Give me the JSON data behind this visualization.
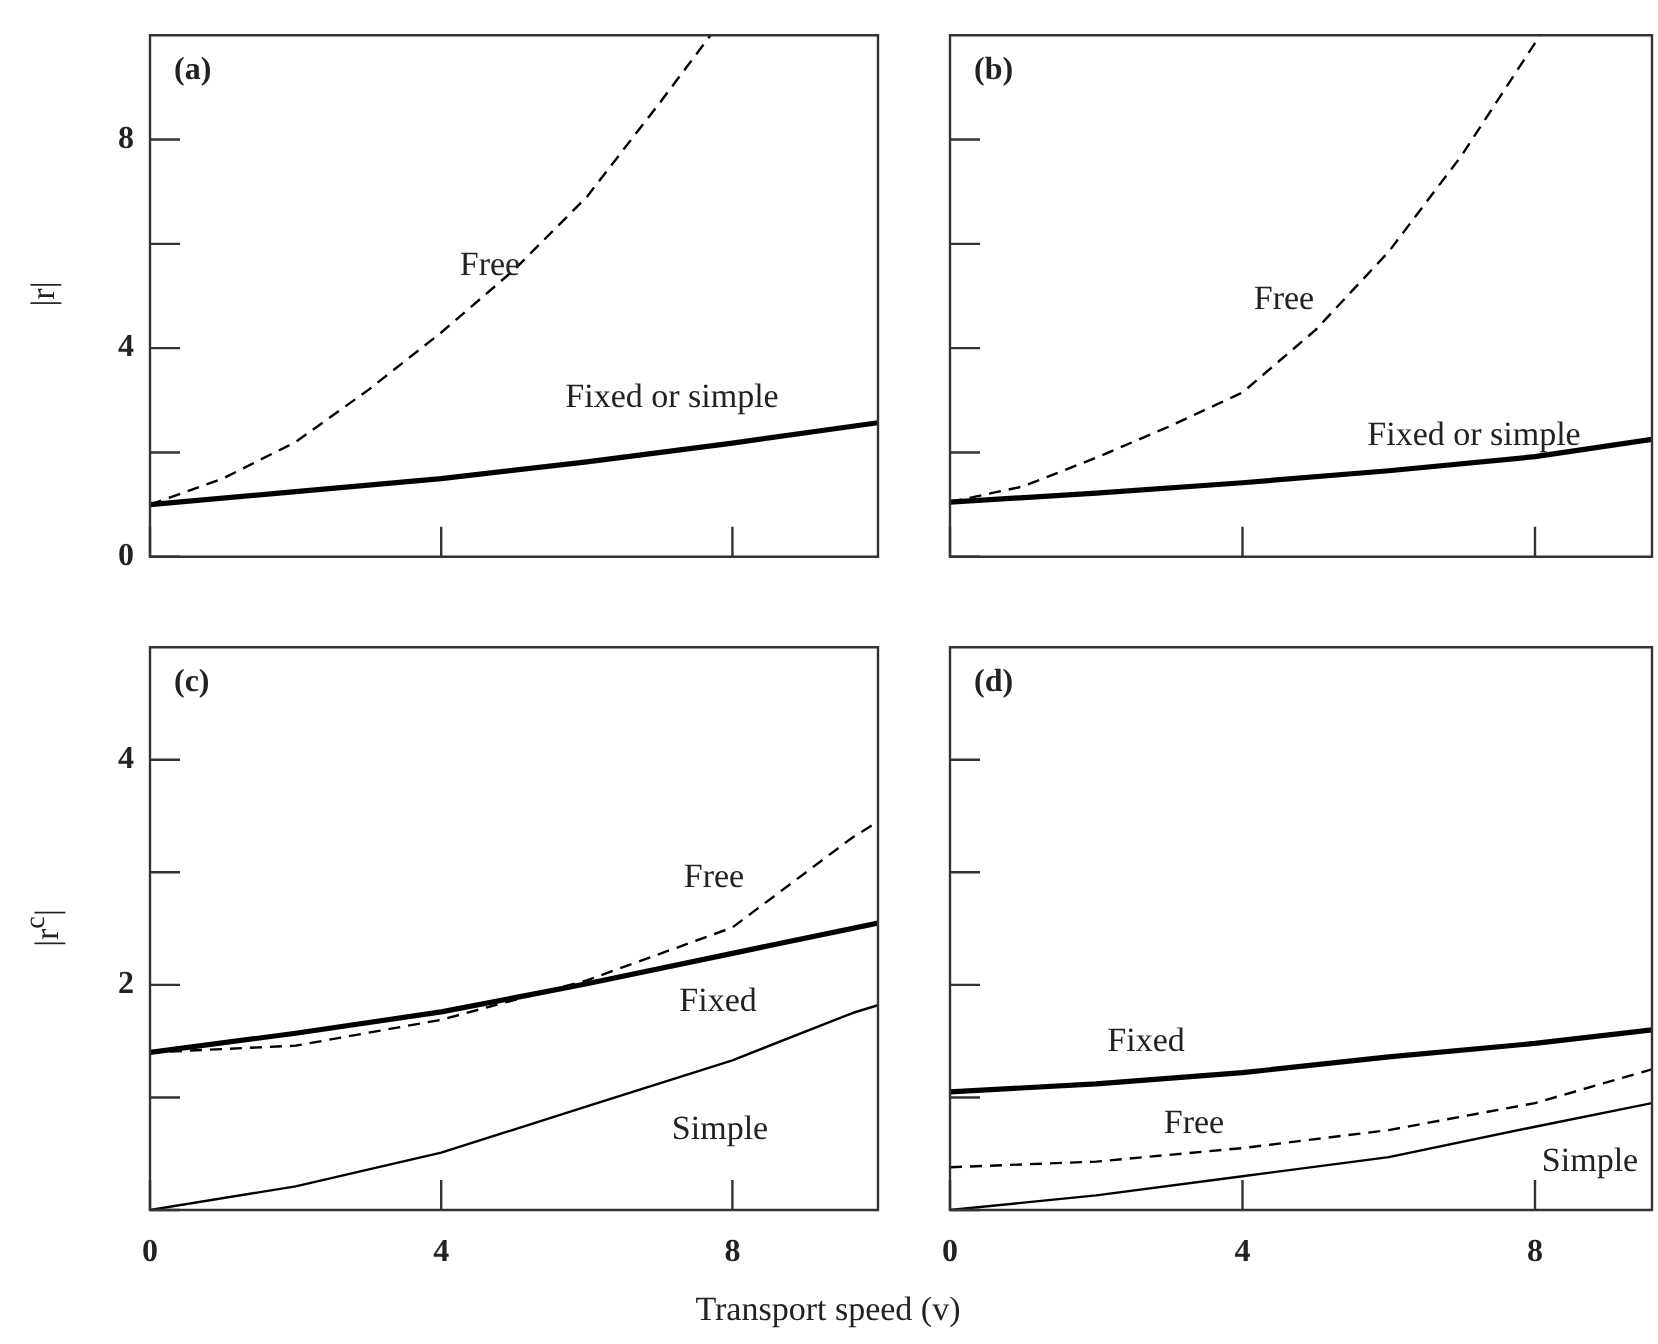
{
  "chart_data": [
    {
      "type": "line",
      "title": "(a)",
      "ylabel": "|r|",
      "xlim": [
        0,
        10
      ],
      "ylim": [
        0,
        10
      ],
      "xticks": [
        {
          "value": 0,
          "label": null
        },
        {
          "value": 4,
          "label": null
        },
        {
          "value": 8,
          "label": null
        }
      ],
      "yticks": [
        0,
        {
          "value": 2,
          "label": null
        },
        4,
        {
          "value": 6,
          "label": null
        },
        8
      ],
      "tick_labels": "y",
      "grid": false,
      "legend": false,
      "series": [
        {
          "name": "Fixed or simple",
          "color": "#000000",
          "line_style": "solid",
          "x": [
            0,
            2,
            4,
            6,
            8,
            10
          ],
          "values": [
            1.0,
            1.25,
            1.5,
            1.82,
            2.18,
            2.57
          ]
        },
        {
          "name": "Free",
          "color": "#000000",
          "line_style": "dashed",
          "x": [
            0,
            1,
            2,
            3,
            4,
            5,
            6,
            7,
            7.7
          ],
          "values": [
            1.0,
            1.5,
            2.2,
            3.2,
            4.3,
            5.5,
            6.9,
            8.7,
            10
          ]
        }
      ]
    },
    {
      "type": "line",
      "title": "(b)",
      "xlim": [
        0,
        9.6
      ],
      "ylim": [
        0,
        10
      ],
      "xticks": [
        {
          "value": 0,
          "label": null
        },
        {
          "value": 4,
          "label": null
        },
        {
          "value": 8,
          "label": null
        }
      ],
      "yticks": [
        {
          "value": 0,
          "label": null
        },
        {
          "value": 2,
          "label": null
        },
        {
          "value": 4,
          "label": null
        },
        {
          "value": 6,
          "label": null
        },
        {
          "value": 8,
          "label": null
        }
      ],
      "tick_labels": false,
      "grid": false,
      "legend": false,
      "series": [
        {
          "name": "Fixed or simple",
          "color": "#000000",
          "line_style": "solid",
          "x": [
            0,
            2,
            4,
            6,
            8,
            9.6
          ],
          "values": [
            1.05,
            1.22,
            1.42,
            1.65,
            1.92,
            2.25
          ]
        },
        {
          "name": "Free",
          "color": "#000000",
          "line_style": "dashed",
          "x": [
            0,
            1,
            2,
            3,
            4,
            5,
            6,
            7,
            8.07
          ],
          "values": [
            1.05,
            1.35,
            1.9,
            2.5,
            3.15,
            4.35,
            5.85,
            7.7,
            10
          ]
        }
      ]
    },
    {
      "type": "line",
      "title": "(c)",
      "ylabel": "|r$^{c}$|",
      "xlabel": "Transport speed (v)",
      "xlim": [
        0,
        10
      ],
      "ylim": [
        0,
        5
      ],
      "xticks": [
        0,
        4,
        8
      ],
      "yticks": [
        {
          "value": 0,
          "label": null
        },
        {
          "value": 1,
          "label": null
        },
        2,
        {
          "value": 3,
          "label": null
        },
        4
      ],
      "grid": false,
      "legend": false,
      "series": [
        {
          "name": "Fixed",
          "color": "#000000",
          "line_style": "solid",
          "x": [
            0,
            2,
            4,
            6,
            8,
            10
          ],
          "values": [
            1.4,
            1.57,
            1.76,
            2.01,
            2.28,
            2.55
          ]
        },
        {
          "name": "Free",
          "color": "#000000",
          "line_style": "dashed",
          "x": [
            0,
            2,
            4,
            6,
            8,
            9.65,
            10
          ],
          "values": [
            1.4,
            1.46,
            1.69,
            2.04,
            2.51,
            3.31,
            3.45
          ]
        },
        {
          "name": "Simple",
          "color": "#000000",
          "line_style": "solid",
          "x": [
            0,
            2,
            4,
            6,
            8,
            9.65,
            10
          ],
          "values": [
            0,
            0.21,
            0.51,
            0.92,
            1.33,
            1.75,
            1.82
          ]
        }
      ]
    },
    {
      "type": "line",
      "title": "(d)",
      "xlim": [
        0,
        9.6
      ],
      "ylim": [
        0,
        5
      ],
      "xticks": [
        0,
        4,
        8
      ],
      "yticks": [
        {
          "value": 0,
          "label": null
        },
        {
          "value": 1,
          "label": null
        },
        {
          "value": 2,
          "label": null
        },
        {
          "value": 3,
          "label": null
        },
        {
          "value": 4,
          "label": null
        }
      ],
      "tick_labels": "x",
      "grid": false,
      "legend": false,
      "series": [
        {
          "name": "Fixed",
          "color": "#000000",
          "line_style": "solid",
          "x": [
            0,
            2,
            4,
            6,
            8,
            9.6
          ],
          "values": [
            1.05,
            1.12,
            1.22,
            1.36,
            1.48,
            1.6
          ]
        },
        {
          "name": "Free",
          "color": "#000000",
          "line_style": "dashed",
          "x": [
            0,
            2,
            4,
            6,
            8,
            9.6
          ],
          "values": [
            0.38,
            0.43,
            0.55,
            0.71,
            0.95,
            1.25
          ]
        },
        {
          "name": "Simple",
          "color": "#000000",
          "line_style": "solid",
          "x": [
            0,
            2,
            4,
            6,
            8,
            9.6
          ],
          "values": [
            0,
            0.13,
            0.3,
            0.47,
            0.74,
            0.95
          ]
        }
      ]
    }
  ]
}
